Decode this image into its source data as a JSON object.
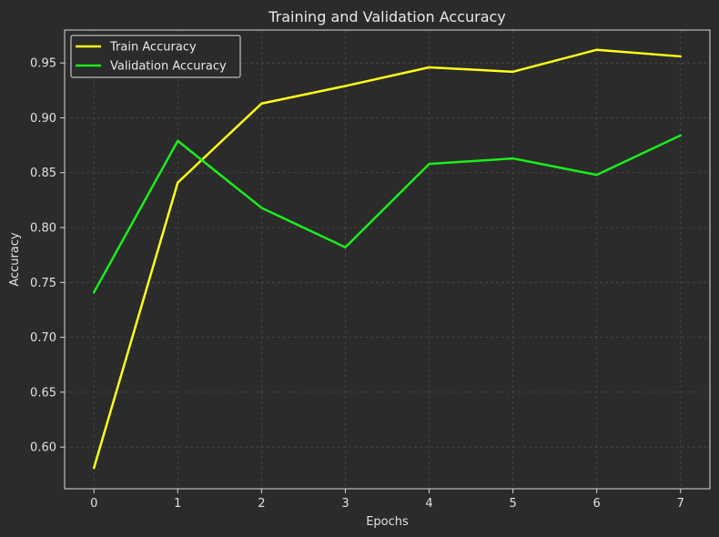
{
  "chart_data": {
    "type": "line",
    "title": "Training and Validation Accuracy",
    "xlabel": "Epochs",
    "ylabel": "Accuracy",
    "x": [
      0,
      1,
      2,
      3,
      4,
      5,
      6,
      7
    ],
    "xticks": [
      "0",
      "1",
      "2",
      "3",
      "4",
      "5",
      "6",
      "7"
    ],
    "yticks": [
      "0.60",
      "0.65",
      "0.70",
      "0.75",
      "0.80",
      "0.85",
      "0.90",
      "0.95"
    ],
    "ytick_values": [
      0.6,
      0.65,
      0.7,
      0.75,
      0.8,
      0.85,
      0.9,
      0.95
    ],
    "xlim": [
      -0.35,
      7.35
    ],
    "ylim": [
      0.562,
      0.98
    ],
    "grid": true,
    "legend_position": "top-left",
    "background_color": "#2b2b2b",
    "series": [
      {
        "name": "Train Accuracy",
        "color": "#ffff1a",
        "values": [
          0.581,
          0.841,
          0.913,
          0.929,
          0.946,
          0.942,
          0.962,
          0.956
        ]
      },
      {
        "name": "Validation Accuracy",
        "color": "#1aee1a",
        "values": [
          0.741,
          0.879,
          0.818,
          0.782,
          0.858,
          0.863,
          0.848,
          0.884
        ]
      }
    ]
  }
}
